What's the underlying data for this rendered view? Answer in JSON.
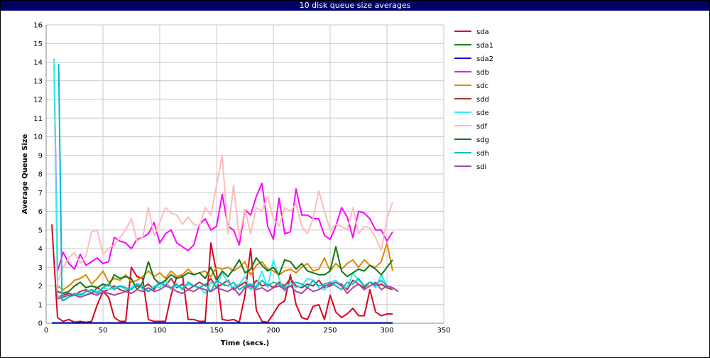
{
  "chart_data": {
    "type": "line",
    "title": "10 disk queue size averages",
    "xlabel": "Time (secs.)",
    "ylabel": "Average Queue Size",
    "xlim": [
      0,
      350
    ],
    "ylim": [
      0,
      16
    ],
    "x_ticks": [
      0,
      50,
      100,
      150,
      200,
      250,
      300,
      350
    ],
    "y_ticks": [
      0,
      1,
      2,
      3,
      4,
      5,
      6,
      7,
      8,
      9,
      10,
      11,
      12,
      13,
      14,
      15,
      16
    ],
    "grid": true,
    "legend_position": "right",
    "series": [
      {
        "name": "sda",
        "color": "#dd0022",
        "x": [
          5,
          10,
          15,
          20,
          25,
          30,
          35,
          40,
          45,
          50,
          55,
          60,
          65,
          70,
          75,
          80,
          85,
          90,
          95,
          100,
          105,
          110,
          115,
          120,
          125,
          130,
          135,
          140,
          145,
          150,
          155,
          160,
          165,
          170,
          175,
          180,
          185,
          190,
          195,
          200,
          205,
          210,
          215,
          220,
          225,
          230,
          235,
          240,
          245,
          250,
          255,
          260,
          265,
          270,
          275,
          280,
          285,
          290,
          295,
          300,
          305
        ],
        "y": [
          5.3,
          0.3,
          0.1,
          0.2,
          0.05,
          0.1,
          0.05,
          0.1,
          1.0,
          1.7,
          1.4,
          0.3,
          0.1,
          0.1,
          3.0,
          2.5,
          2.4,
          0.2,
          0.1,
          0.1,
          0.1,
          1.5,
          2.5,
          2.6,
          0.2,
          0.2,
          0.1,
          0.1,
          4.3,
          2.7,
          0.2,
          0.15,
          0.2,
          0.05,
          1.5,
          4.0,
          0.7,
          0.1,
          0.05,
          0.5,
          1.0,
          1.2,
          2.6,
          1.0,
          0.3,
          0.2,
          0.9,
          1.0,
          0.2,
          1.5,
          0.6,
          0.3,
          0.5,
          0.8,
          0.4,
          0.4,
          1.8,
          0.6,
          0.4,
          0.5,
          0.5
        ]
      },
      {
        "name": "sda1",
        "color": "#008800",
        "x": [
          5,
          305
        ],
        "y": [
          0.02,
          0.02
        ]
      },
      {
        "name": "sda2",
        "color": "#0000cc",
        "x": [
          5,
          305
        ],
        "y": [
          0.01,
          0.01
        ]
      },
      {
        "name": "sdb",
        "color": "#ff00ff",
        "x": [
          7,
          10,
          15,
          20,
          25,
          30,
          35,
          40,
          45,
          50,
          55,
          60,
          65,
          70,
          75,
          80,
          85,
          90,
          95,
          100,
          105,
          110,
          115,
          120,
          125,
          130,
          135,
          140,
          145,
          150,
          155,
          160,
          165,
          170,
          175,
          180,
          185,
          190,
          195,
          200,
          205,
          210,
          215,
          220,
          225,
          230,
          235,
          240,
          245,
          250,
          255,
          260,
          265,
          270,
          275,
          280,
          285,
          290,
          295,
          300,
          305
        ],
        "y": [
          13.8,
          2.8,
          3.8,
          3.2,
          2.9,
          3.7,
          3.1,
          3.3,
          3.5,
          3.2,
          3.3,
          4.6,
          4.4,
          4.3,
          4.0,
          4.5,
          4.6,
          4.8,
          5.4,
          4.3,
          4.8,
          5.0,
          4.3,
          4.1,
          3.9,
          4.2,
          5.3,
          5.6,
          5.0,
          5.2,
          6.9,
          5.2,
          5.0,
          4.2,
          6.1,
          5.8,
          6.8,
          7.5,
          5.2,
          4.5,
          6.7,
          4.8,
          4.9,
          7.2,
          5.8,
          5.8,
          5.6,
          5.6,
          4.7,
          4.5,
          5.2,
          6.2,
          5.7,
          4.6,
          6.0,
          5.9,
          5.6,
          5.0,
          5.0,
          4.4,
          4.9
        ]
      },
      {
        "name": "sdc",
        "color": "#dd8800",
        "x": [
          10,
          15,
          20,
          25,
          30,
          35,
          40,
          45,
          50,
          55,
          60,
          65,
          70,
          75,
          80,
          85,
          90,
          95,
          100,
          105,
          110,
          115,
          120,
          125,
          130,
          135,
          140,
          145,
          150,
          155,
          160,
          165,
          170,
          175,
          180,
          185,
          190,
          195,
          200,
          205,
          210,
          215,
          220,
          225,
          230,
          235,
          240,
          245,
          250,
          255,
          260,
          265,
          270,
          275,
          280,
          285,
          290,
          295,
          300,
          305
        ],
        "y": [
          2.0,
          1.8,
          2.0,
          2.3,
          2.4,
          2.6,
          2.1,
          2.4,
          2.8,
          2.2,
          2.4,
          2.3,
          2.6,
          2.2,
          2.3,
          2.5,
          2.8,
          2.5,
          2.7,
          2.4,
          2.8,
          2.5,
          2.6,
          2.9,
          2.6,
          2.7,
          2.8,
          2.5,
          3.0,
          2.9,
          3.0,
          2.8,
          3.0,
          3.3,
          2.6,
          3.1,
          3.3,
          2.9,
          2.8,
          2.6,
          2.8,
          2.9,
          2.7,
          3.0,
          3.2,
          2.8,
          2.9,
          3.5,
          2.8,
          3.2,
          2.9,
          3.2,
          3.4,
          3.0,
          3.4,
          3.1,
          3.0,
          3.3,
          4.3,
          2.8
        ]
      },
      {
        "name": "sdd",
        "color": "#aa3333",
        "x": [
          10,
          15,
          20,
          25,
          30,
          35,
          40,
          45,
          50,
          55,
          60,
          65,
          70,
          75,
          80,
          85,
          90,
          95,
          100,
          105,
          110,
          115,
          120,
          125,
          130,
          135,
          140,
          145,
          150,
          155,
          160,
          165,
          170,
          175,
          180,
          185,
          190,
          195,
          200,
          205,
          210,
          215,
          220,
          225,
          230,
          235,
          240,
          245,
          250,
          255,
          260,
          265,
          270,
          275,
          280,
          285,
          290,
          295,
          300,
          305
        ],
        "y": [
          1.4,
          1.5,
          1.6,
          1.5,
          1.7,
          1.8,
          1.6,
          1.9,
          1.7,
          1.8,
          2.0,
          1.8,
          1.7,
          1.9,
          2.0,
          1.9,
          2.1,
          1.8,
          2.2,
          2.0,
          2.4,
          1.9,
          2.1,
          1.8,
          2.0,
          2.2,
          2.0,
          2.4,
          1.9,
          2.1,
          2.3,
          1.8,
          2.0,
          2.2,
          1.8,
          2.3,
          2.0,
          2.1,
          1.9,
          2.2,
          2.0,
          2.4,
          2.0,
          1.9,
          2.1,
          2.0,
          2.3,
          1.9,
          2.0,
          2.2,
          2.1,
          1.8,
          2.3,
          2.1,
          1.9,
          2.2,
          2.0,
          2.1,
          1.9,
          1.8
        ]
      },
      {
        "name": "sde",
        "color": "#33eeee",
        "x": [
          7,
          10,
          15,
          20,
          25,
          30,
          35,
          40,
          45,
          50,
          55,
          60,
          65,
          70,
          75,
          80,
          85,
          90,
          95,
          100,
          105,
          110,
          115,
          120,
          125,
          130,
          135,
          140,
          145,
          150,
          155,
          160,
          165,
          170,
          175,
          180,
          185,
          190,
          195,
          200,
          205,
          210,
          215,
          220,
          225,
          230,
          235,
          240,
          245,
          250,
          255,
          260,
          265,
          270,
          275,
          280,
          285,
          290,
          295,
          300,
          305
        ],
        "y": [
          14.2,
          1.5,
          1.2,
          1.4,
          1.5,
          1.6,
          1.5,
          1.8,
          1.7,
          1.9,
          1.8,
          1.9,
          2.0,
          1.8,
          1.9,
          2.1,
          1.8,
          1.7,
          2.0,
          1.9,
          2.3,
          1.8,
          2.0,
          1.9,
          2.1,
          2.0,
          1.9,
          1.6,
          2.2,
          2.0,
          2.7,
          2.2,
          1.9,
          2.1,
          2.5,
          1.8,
          2.0,
          2.8,
          1.9,
          3.4,
          2.4,
          1.7,
          2.2,
          1.9,
          2.0,
          2.4,
          2.3,
          1.9,
          1.8,
          2.2,
          2.3,
          2.0,
          1.9,
          2.7,
          2.3,
          2.0,
          2.2,
          1.9,
          2.6,
          2.0,
          1.9
        ]
      },
      {
        "name": "sdf",
        "color": "#ffbbbb",
        "x": [
          10,
          15,
          20,
          25,
          30,
          35,
          40,
          45,
          50,
          55,
          60,
          65,
          70,
          75,
          80,
          85,
          90,
          95,
          100,
          105,
          110,
          115,
          120,
          125,
          130,
          135,
          140,
          145,
          150,
          155,
          160,
          165,
          170,
          175,
          180,
          185,
          190,
          195,
          200,
          205,
          210,
          215,
          220,
          225,
          230,
          235,
          240,
          245,
          250,
          255,
          260,
          265,
          270,
          275,
          280,
          285,
          290,
          295,
          300,
          305
        ],
        "y": [
          2.2,
          3.0,
          3.5,
          3.8,
          3.2,
          3.6,
          4.9,
          5.0,
          3.7,
          4.0,
          4.2,
          4.6,
          5.0,
          5.6,
          4.4,
          4.6,
          6.2,
          4.7,
          5.4,
          6.2,
          5.9,
          5.8,
          5.3,
          5.7,
          5.3,
          5.2,
          6.2,
          5.8,
          7.4,
          9.0,
          4.8,
          7.4,
          4.6,
          6.1,
          4.8,
          6.2,
          6.0,
          6.8,
          5.6,
          5.2,
          6.2,
          6.0,
          6.4,
          5.2,
          4.8,
          5.6,
          7.1,
          6.0,
          5.0,
          5.3,
          5.2,
          5.0,
          6.2,
          4.8,
          5.2,
          5.1,
          4.6,
          3.9,
          5.6,
          6.5
        ]
      },
      {
        "name": "sdg",
        "color": "#117711",
        "x": [
          10,
          15,
          20,
          25,
          30,
          35,
          40,
          45,
          50,
          55,
          60,
          65,
          70,
          75,
          80,
          85,
          90,
          95,
          100,
          105,
          110,
          115,
          120,
          125,
          130,
          135,
          140,
          145,
          150,
          155,
          160,
          165,
          170,
          175,
          180,
          185,
          190,
          195,
          200,
          205,
          210,
          215,
          220,
          225,
          230,
          235,
          240,
          245,
          250,
          255,
          260,
          265,
          270,
          275,
          280,
          285,
          290,
          295,
          300,
          305
        ],
        "y": [
          1.7,
          1.6,
          1.7,
          2.0,
          2.2,
          1.9,
          2.0,
          1.9,
          2.1,
          2.0,
          2.6,
          2.4,
          2.5,
          2.4,
          1.8,
          2.2,
          3.3,
          2.4,
          2.1,
          2.3,
          2.6,
          2.4,
          2.5,
          2.7,
          2.6,
          2.7,
          2.4,
          3.0,
          2.3,
          2.8,
          2.5,
          2.9,
          3.4,
          2.7,
          2.9,
          3.5,
          3.1,
          2.8,
          3.0,
          2.6,
          3.4,
          3.3,
          2.9,
          3.2,
          2.8,
          2.7,
          2.6,
          2.6,
          2.8,
          4.1,
          2.8,
          2.5,
          2.7,
          2.9,
          2.8,
          3.1,
          2.9,
          2.6,
          3.0,
          3.4
        ]
      },
      {
        "name": "sdh",
        "color": "#00bbcc",
        "x": [
          11,
          14,
          20,
          25,
          30,
          35,
          40,
          45,
          50,
          55,
          60,
          65,
          70,
          75,
          80,
          85,
          90,
          95,
          100,
          105,
          110,
          115,
          120,
          125,
          130,
          135,
          140,
          145,
          150,
          155,
          160,
          165,
          170,
          175,
          180,
          185,
          190,
          195,
          200,
          205,
          210,
          215,
          220,
          225,
          230,
          235,
          240,
          245,
          250,
          255,
          260,
          265,
          270,
          275,
          280,
          285,
          290,
          295,
          300,
          305,
          310
        ],
        "y": [
          13.9,
          1.2,
          1.4,
          1.6,
          1.5,
          1.7,
          1.8,
          1.6,
          1.9,
          2.1,
          1.8,
          2.0,
          1.9,
          1.8,
          2.1,
          2.0,
          1.7,
          1.9,
          2.2,
          2.0,
          1.9,
          2.1,
          1.8,
          2.2,
          2.0,
          1.9,
          2.1,
          1.7,
          2.3,
          2.1,
          2.0,
          2.2,
          1.8,
          2.0,
          2.1,
          1.9,
          2.3,
          2.0,
          2.2,
          2.1,
          1.9,
          2.0,
          2.2,
          2.1,
          1.9,
          2.3,
          2.0,
          2.1,
          2.2,
          2.0,
          1.8,
          2.2,
          2.1,
          2.4,
          2.0,
          2.2,
          2.1,
          2.3,
          2.0,
          1.9,
          1.7
        ]
      },
      {
        "name": "sdi",
        "color": "#aa44aa",
        "x": [
          10,
          15,
          20,
          25,
          30,
          35,
          40,
          45,
          50,
          55,
          60,
          65,
          70,
          75,
          80,
          85,
          90,
          95,
          100,
          105,
          110,
          115,
          120,
          125,
          130,
          135,
          140,
          145,
          150,
          155,
          160,
          165,
          170,
          175,
          180,
          185,
          190,
          195,
          200,
          205,
          210,
          215,
          220,
          225,
          230,
          235,
          240,
          245,
          250,
          255,
          260,
          265,
          270,
          275,
          280,
          285,
          290,
          295,
          300,
          305,
          310
        ],
        "y": [
          1.3,
          1.4,
          1.5,
          1.5,
          1.4,
          1.5,
          1.6,
          1.5,
          1.7,
          1.6,
          1.5,
          1.6,
          1.7,
          1.6,
          1.8,
          1.7,
          1.9,
          1.7,
          1.8,
          2.0,
          1.9,
          1.7,
          1.6,
          1.8,
          1.7,
          1.9,
          1.8,
          1.7,
          1.9,
          1.8,
          1.7,
          1.9,
          1.5,
          1.9,
          2.0,
          1.8,
          1.9,
          1.7,
          1.9,
          2.0,
          1.8,
          2.0,
          1.7,
          1.6,
          1.9,
          1.7,
          1.8,
          2.0,
          2.1,
          2.2,
          2.0,
          1.6,
          1.9,
          2.1,
          1.8,
          2.0,
          2.2,
          1.8,
          2.0,
          1.9,
          1.7
        ]
      }
    ]
  }
}
